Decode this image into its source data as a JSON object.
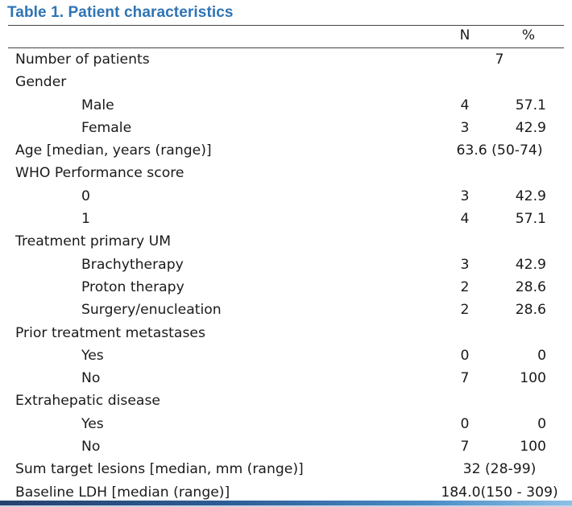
{
  "title": "Table 1. Patient characteristics",
  "columns": {
    "n": "N",
    "pct": "%"
  },
  "rows": [
    {
      "label": "Number of patients",
      "level": 0,
      "span": "7"
    },
    {
      "label": "Gender",
      "level": 0
    },
    {
      "label": "Male",
      "level": 1,
      "n": "4",
      "pct": "57.1"
    },
    {
      "label": "Female",
      "level": 1,
      "n": "3",
      "pct": "42.9"
    },
    {
      "label": "Age [median, years (range)]",
      "level": 0,
      "span": "63.6 (50-74)"
    },
    {
      "label": "WHO Performance score",
      "level": 0
    },
    {
      "label": "0",
      "level": 1,
      "n": "3",
      "pct": "42.9"
    },
    {
      "label": "1",
      "level": 1,
      "n": "4",
      "pct": "57.1"
    },
    {
      "label": "Treatment primary UM",
      "level": 0
    },
    {
      "label": "Brachytherapy",
      "level": 1,
      "n": "3",
      "pct": "42.9"
    },
    {
      "label": "Proton therapy",
      "level": 1,
      "n": "2",
      "pct": "28.6"
    },
    {
      "label": "Surgery/enucleation",
      "level": 1,
      "n": "2",
      "pct": "28.6"
    },
    {
      "label": "Prior treatment metastases",
      "level": 0
    },
    {
      "label": "Yes",
      "level": 1,
      "n": "0",
      "pct": "0"
    },
    {
      "label": "No",
      "level": 1,
      "n": "7",
      "pct": "100"
    },
    {
      "label": "Extrahepatic disease",
      "level": 0
    },
    {
      "label": "Yes",
      "level": 1,
      "n": "0",
      "pct": "0"
    },
    {
      "label": "No",
      "level": 1,
      "n": "7",
      "pct": "100"
    },
    {
      "label": "Sum target lesions [median, mm (range)]",
      "level": 0,
      "span": "32 (28-99)"
    },
    {
      "label": "Baseline LDH [median (range)]",
      "level": 0,
      "span": "184.0(150 - 309)"
    }
  ]
}
